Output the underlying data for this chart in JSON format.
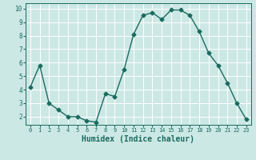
{
  "x": [
    0,
    1,
    2,
    3,
    4,
    5,
    6,
    7,
    8,
    9,
    10,
    11,
    12,
    13,
    14,
    15,
    16,
    17,
    18,
    19,
    20,
    21,
    22,
    23
  ],
  "y": [
    4.2,
    5.8,
    3.0,
    2.5,
    2.0,
    2.0,
    1.7,
    1.6,
    3.7,
    3.5,
    5.5,
    8.1,
    9.5,
    9.7,
    9.2,
    9.9,
    9.9,
    9.5,
    8.3,
    6.7,
    5.8,
    4.5,
    3.0,
    1.8
  ],
  "line_color": "#1a6b5e",
  "marker": "D",
  "markersize": 2.5,
  "linewidth": 1.0,
  "xlabel": "Humidex (Indice chaleur)",
  "xlabel_fontsize": 7,
  "xlabel_color": "#1a6b5e",
  "background_color": "#cce8e5",
  "grid_color": "#ffffff",
  "tick_color": "#1a6b5e",
  "ylim": [
    1.4,
    10.4
  ],
  "xlim": [
    -0.5,
    23.5
  ],
  "yticks": [
    2,
    3,
    4,
    5,
    6,
    7,
    8,
    9,
    10
  ],
  "xticks": [
    0,
    1,
    2,
    3,
    4,
    5,
    6,
    7,
    8,
    9,
    10,
    11,
    12,
    13,
    14,
    15,
    16,
    17,
    18,
    19,
    20,
    21,
    22,
    23
  ]
}
